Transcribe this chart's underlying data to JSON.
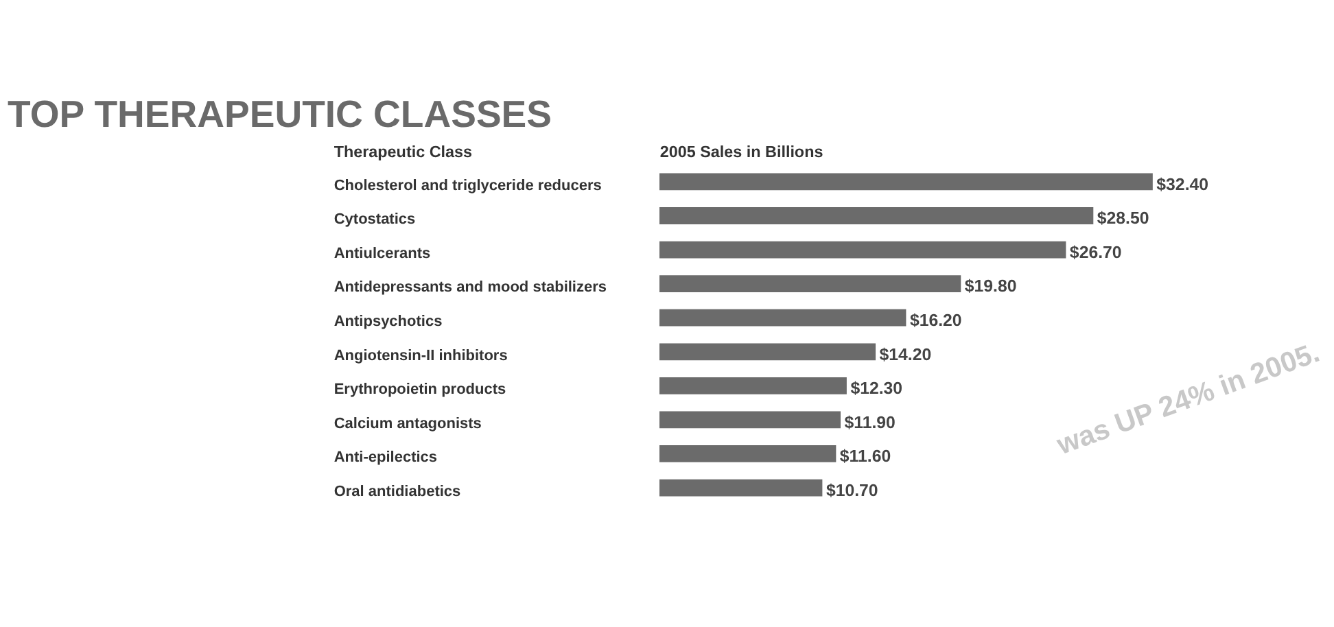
{
  "chart_data": {
    "type": "bar",
    "orientation": "horizontal",
    "title": "TOP THERAPEUTIC CLASSES",
    "ylabel": "Therapeutic Class",
    "xlabel": "2005 Sales in Billions",
    "categories": [
      "Cholesterol and triglyceride reducers",
      "Cytostatics",
      "Antiulcerants",
      "Antidepressants and mood stabilizers",
      "Antipsychotics",
      "Angiotensin-II inhibitors",
      "Erythropoietin products",
      "Calcium antagonists",
      "Anti-epilectics",
      "Oral antidiabetics"
    ],
    "values": [
      32.4,
      28.5,
      26.7,
      19.8,
      16.2,
      14.2,
      12.3,
      11.9,
      11.6,
      10.7
    ],
    "value_labels": [
      "$32.40",
      "$28.50",
      "$26.70",
      "$19.80",
      "$16.20",
      "$14.20",
      "$12.30",
      "$11.90",
      "$11.60",
      "$10.70"
    ],
    "color": "#6b6b6b",
    "annotations": [
      "was UP 24% in 2005."
    ],
    "grid": false
  }
}
